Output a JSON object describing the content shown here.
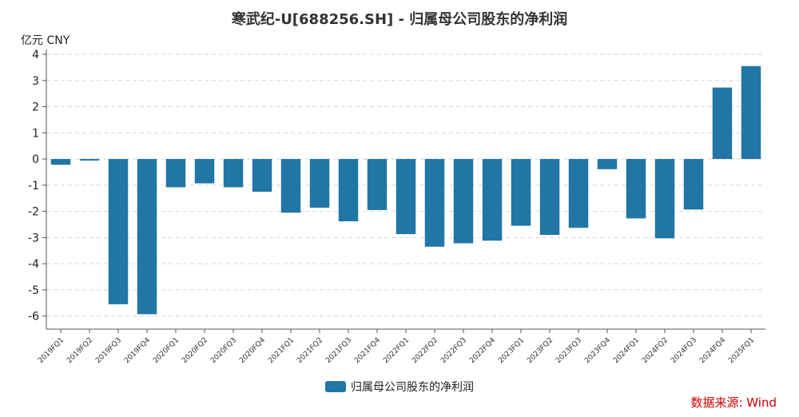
{
  "unit_label": "亿元  CNY",
  "source_label": "数据来源: Wind",
  "colors": {
    "bar": "#2176a5",
    "grid": "#d6d6d6",
    "axis": "#555555"
  },
  "chart_data": {
    "type": "bar",
    "title": "寒武纪-U[688256.SH] - 归属母公司股东的净利润",
    "xlabel": "",
    "ylabel": "",
    "ylim": [
      -6.5,
      4
    ],
    "yticks": [
      4,
      3,
      2,
      1,
      0,
      -1,
      -2,
      -3,
      -4,
      -5,
      -6
    ],
    "grid": true,
    "legend_position": "bottom-center",
    "categories": [
      "2019FQ1",
      "2019FQ2",
      "2019FQ3",
      "2019FQ4",
      "2020FQ1",
      "2020FQ2",
      "2020FQ3",
      "2020FQ4",
      "2021FQ1",
      "2021FQ2",
      "2021FQ3",
      "2021FQ4",
      "2022FQ1",
      "2022FQ2",
      "2022FQ3",
      "2022FQ4",
      "2023FQ1",
      "2023FQ2",
      "2023FQ3",
      "2023FQ4",
      "2024FQ1",
      "2024FQ2",
      "2024FQ3",
      "2024FQ4",
      "2025FQ1"
    ],
    "series": [
      {
        "name": "归属母公司股东的净利润",
        "values": [
          -0.22,
          -0.06,
          -5.55,
          -5.93,
          -1.08,
          -0.93,
          -1.08,
          -1.25,
          -2.05,
          -1.86,
          -2.38,
          -1.95,
          -2.87,
          -3.35,
          -3.22,
          -3.12,
          -2.55,
          -2.9,
          -2.63,
          -0.39,
          -2.27,
          -3.03,
          -1.93,
          2.73,
          3.55
        ]
      }
    ]
  }
}
